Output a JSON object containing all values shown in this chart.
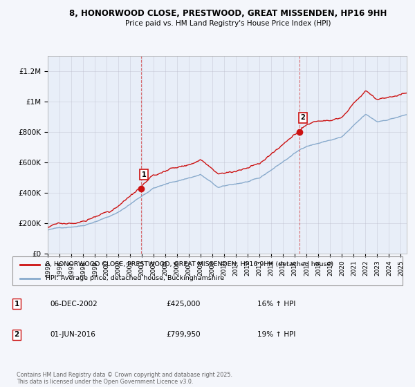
{
  "title_line1": "8, HONORWOOD CLOSE, PRESTWOOD, GREAT MISSENDEN, HP16 9HH",
  "title_line2": "Price paid vs. HM Land Registry's House Price Index (HPI)",
  "ylim": [
    0,
    1300000
  ],
  "xlim_start": 1995.0,
  "xlim_end": 2025.5,
  "yticks": [
    0,
    200000,
    400000,
    600000,
    800000,
    1000000,
    1200000
  ],
  "ytick_labels": [
    "£0",
    "£200K",
    "£400K",
    "£600K",
    "£800K",
    "£1M",
    "£1.2M"
  ],
  "sale1_x": 2002.92,
  "sale1_y": 425000,
  "sale2_x": 2016.42,
  "sale2_y": 799950,
  "red_color": "#cc1111",
  "blue_color": "#88aacc",
  "legend_label_red": "8, HONORWOOD CLOSE, PRESTWOOD, GREAT MISSENDEN, HP16 9HH (detached house)",
  "legend_label_blue": "HPI: Average price, detached house, Buckinghamshire",
  "footnote": "Contains HM Land Registry data © Crown copyright and database right 2025.\nThis data is licensed under the Open Government Licence v3.0.",
  "background_color": "#f4f6fb",
  "plot_bg_color": "#e8eef8"
}
